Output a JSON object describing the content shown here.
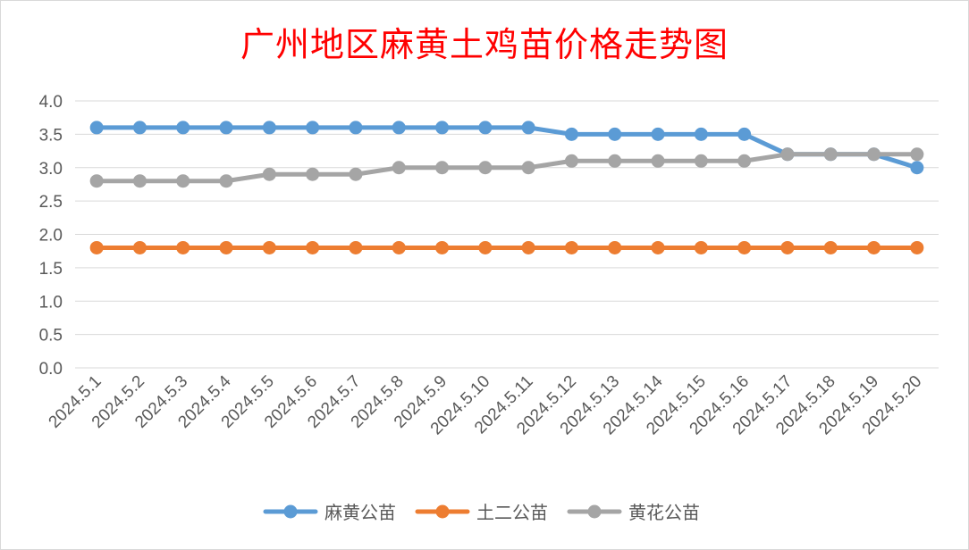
{
  "colors": {
    "title": "#ff0000",
    "grid": "#d9d9d9",
    "axis_text": "#595959"
  },
  "chart_data": {
    "type": "line",
    "title": "广州地区麻黄土鸡苗价格走势图",
    "xlabel": "",
    "ylabel": "",
    "ylim": [
      0,
      4.0
    ],
    "yticks": [
      "0.0",
      "0.5",
      "1.0",
      "1.5",
      "2.0",
      "2.5",
      "3.0",
      "3.5",
      "4.0"
    ],
    "grid": true,
    "legend_position": "bottom",
    "categories": [
      "2024.5.1",
      "2024.5.2",
      "2024.5.3",
      "2024.5.4",
      "2024.5.5",
      "2024.5.6",
      "2024.5.7",
      "2024.5.8",
      "2024.5.9",
      "2024.5.10",
      "2024.5.11",
      "2024.5.12",
      "2024.5.13",
      "2024.5.14",
      "2024.5.15",
      "2024.5.16",
      "2024.5.17",
      "2024.5.18",
      "2024.5.19",
      "2024.5.20"
    ],
    "series": [
      {
        "name": "麻黄公苗",
        "color": "#5b9bd5",
        "values": [
          3.6,
          3.6,
          3.6,
          3.6,
          3.6,
          3.6,
          3.6,
          3.6,
          3.6,
          3.6,
          3.6,
          3.5,
          3.5,
          3.5,
          3.5,
          3.5,
          3.2,
          3.2,
          3.2,
          3.0
        ]
      },
      {
        "name": "土二公苗",
        "color": "#ed7d31",
        "values": [
          1.8,
          1.8,
          1.8,
          1.8,
          1.8,
          1.8,
          1.8,
          1.8,
          1.8,
          1.8,
          1.8,
          1.8,
          1.8,
          1.8,
          1.8,
          1.8,
          1.8,
          1.8,
          1.8,
          1.8
        ]
      },
      {
        "name": "黄花公苗",
        "color": "#a5a5a5",
        "values": [
          2.8,
          2.8,
          2.8,
          2.8,
          2.9,
          2.9,
          2.9,
          3.0,
          3.0,
          3.0,
          3.0,
          3.1,
          3.1,
          3.1,
          3.1,
          3.1,
          3.2,
          3.2,
          3.2,
          3.2
        ]
      }
    ]
  }
}
